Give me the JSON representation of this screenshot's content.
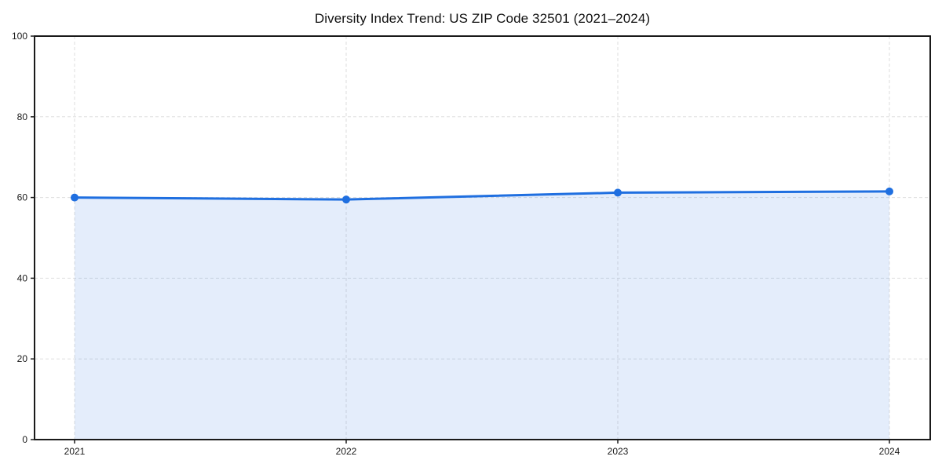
{
  "chart_data": {
    "type": "area",
    "title": "Diversity Index Trend: US ZIP Code 32501 (2021–2024)",
    "categories": [
      "2021",
      "2022",
      "2023",
      "2024"
    ],
    "series": [
      {
        "name": "Diversity Index",
        "values": [
          60.0,
          59.5,
          61.2,
          61.5
        ]
      }
    ],
    "xlabel": "",
    "ylabel": "",
    "ylim": [
      0,
      100
    ],
    "yticks": [
      0,
      20,
      40,
      60,
      80,
      100
    ],
    "grid": "dashed, both axes, under data",
    "legend": "none",
    "style": {
      "line_color": "#1f6fe0",
      "marker_color": "#1f6fe0",
      "fill_color": "#1f6fe0",
      "fill_opacity": 0.12,
      "grid_color": "#dedede",
      "spine_color": "#1a1a1a",
      "background_color": "#ffffff",
      "marker": "circle",
      "frame": "full box"
    }
  }
}
